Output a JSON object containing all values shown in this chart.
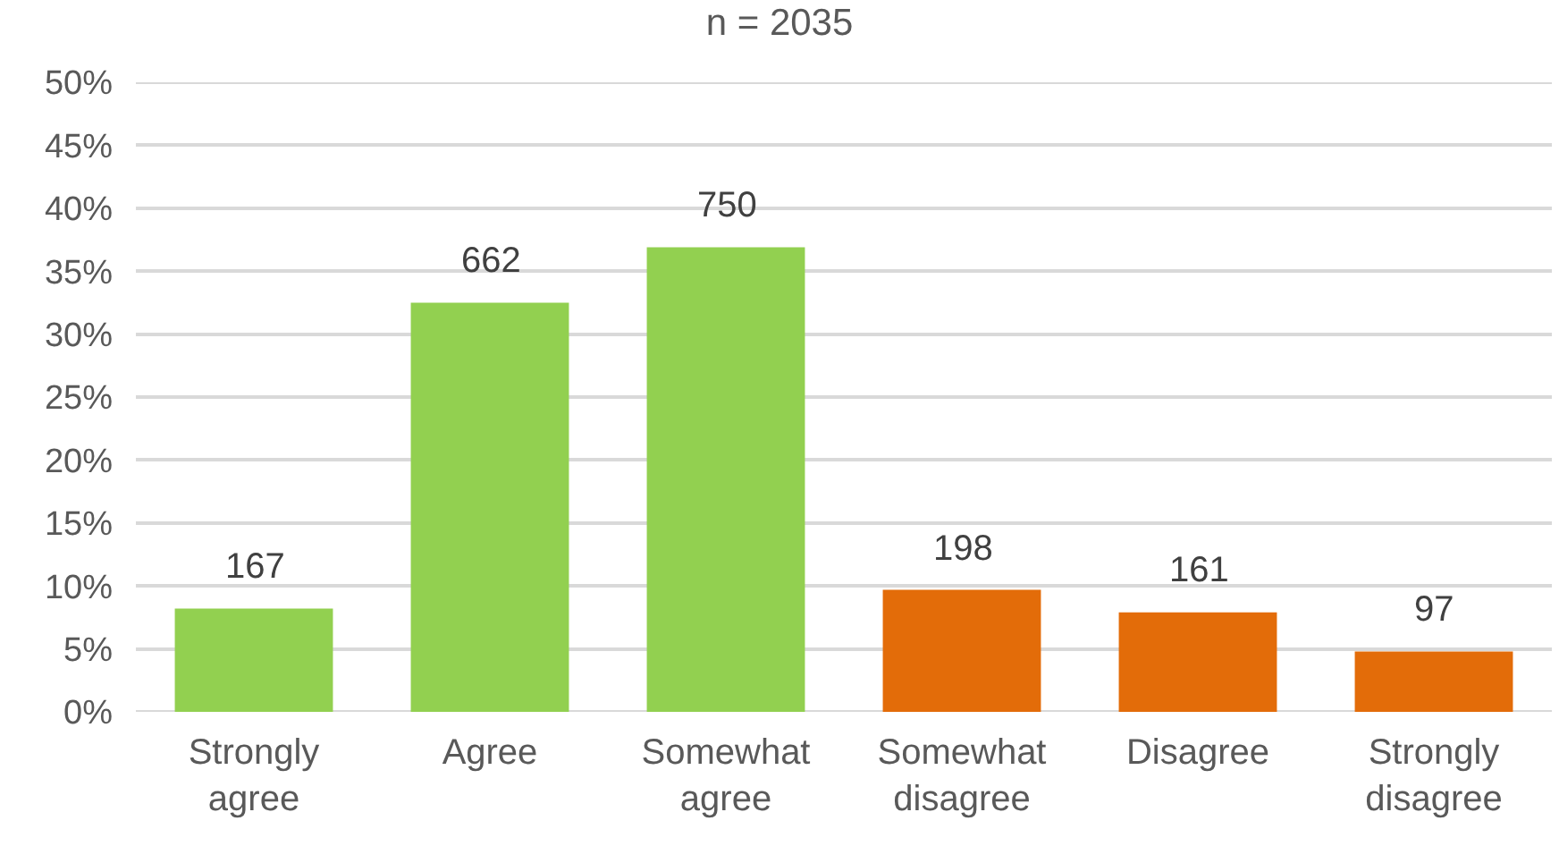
{
  "chart_data": {
    "type": "bar",
    "title": "n = 2035",
    "categories": [
      "Strongly agree",
      "Agree",
      "Somewhat agree",
      "Somewhat disagree",
      "Disagree",
      "Strongly disagree"
    ],
    "values": [
      8.2,
      32.5,
      36.9,
      9.7,
      7.9,
      4.8
    ],
    "colors": [
      "#92d050",
      "#92d050",
      "#92d050",
      "#e36c09",
      "#e36c09",
      "#e36c09"
    ],
    "annotations": [
      {
        "text": "167",
        "x": "Strongly agree",
        "y": 8.2
      },
      {
        "text": "662",
        "x": "Agree",
        "y": 32.5
      },
      {
        "text": "750",
        "x": "Somewhat agree",
        "y": 36.9
      },
      {
        "text": "198",
        "x": "Somewhat disagree",
        "y": 9.7
      },
      {
        "text": "161",
        "x": "Disagree",
        "y": 7.9
      },
      {
        "text": "97",
        "x": "Strongly disagree",
        "y": 4.8
      }
    ],
    "ylim": [
      0,
      50
    ],
    "yticks": [
      {
        "value": 0,
        "label": "0%"
      },
      {
        "value": 5,
        "label": "5%"
      },
      {
        "value": 10,
        "label": "10%"
      },
      {
        "value": 15,
        "label": "15%"
      },
      {
        "value": 20,
        "label": "20%"
      },
      {
        "value": 25,
        "label": "25%"
      },
      {
        "value": 30,
        "label": "30%"
      },
      {
        "value": 35,
        "label": "35%"
      },
      {
        "value": 40,
        "label": "40%"
      },
      {
        "value": 45,
        "label": "45%"
      },
      {
        "value": 50,
        "label": "50%"
      }
    ],
    "grid": "y"
  }
}
